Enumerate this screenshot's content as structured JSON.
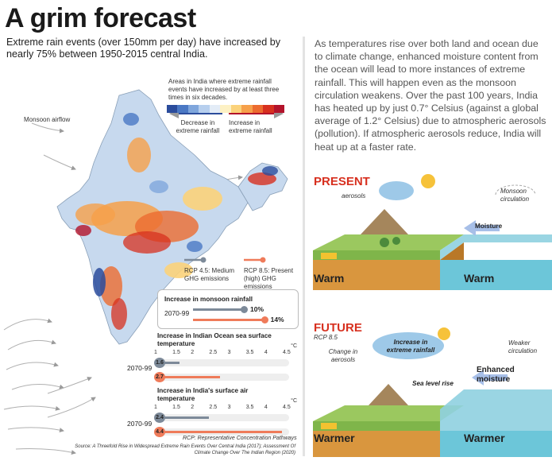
{
  "title": "A grim forecast",
  "subtitle": "Extreme rain events (over 150mm per day) have increased by nearly 75% between 1950-2015 central India.",
  "paragraph": "As temperatures rise over both land and ocean due to climate change, enhanced moisture content from the ocean will lead to more instances of extreme rainfall. This will happen even as the monsoon circulation weakens. Over the past 100 years, India has heated up by just 0.7° Celsius (against a global average of 1.2° Celsius) due to atmospheric aerosols (pollution). If atmospheric aerosols reduce, India will heat up at a faster rate.",
  "map": {
    "legend_title": "Areas in India where extreme rainfall events have increased by at least three times in six decades.",
    "decrease_label": "Decrease in extreme rainfall",
    "increase_label": "Increase in extreme rainfall",
    "monsoon_label": "Monsoon airflow",
    "colors": {
      "decrease": [
        "#2b4c9c",
        "#4a78c4",
        "#7fa6dc",
        "#b7cfee",
        "#e3ecf7"
      ],
      "increase": [
        "#fdf1c4",
        "#fbd27a",
        "#f6a04a",
        "#ec6b2f",
        "#d7301f",
        "#b3132b"
      ]
    }
  },
  "rcp": {
    "rcp45": "RCP 4.5: Medium GHG emissions",
    "rcp85": "RCP 8.5: Present (high) GHG emissions",
    "colors": {
      "rcp45": "#7d8a99",
      "rcp85": "#ef7b5a"
    }
  },
  "chart_data": [
    {
      "type": "bar",
      "title": "Increase in monsoon rainfall",
      "categories": [
        "2070-99"
      ],
      "unit": "%",
      "series": [
        {
          "name": "RCP 4.5",
          "values": [
            10
          ],
          "label": "10%"
        },
        {
          "name": "RCP 8.5",
          "values": [
            14
          ],
          "label": "14%"
        }
      ],
      "xlim": [
        0,
        15
      ]
    },
    {
      "type": "bar",
      "title": "Increase in Indian Ocean sea surface temperature",
      "categories": [
        "2070-99"
      ],
      "unit": "°C",
      "ticks": [
        "1",
        "1.5",
        "2",
        "2.5",
        "3",
        "3.5",
        "4",
        "4.5"
      ],
      "series": [
        {
          "name": "RCP 4.5",
          "values": [
            1.6
          ],
          "label": "1.6"
        },
        {
          "name": "RCP 8.5",
          "values": [
            2.7
          ],
          "label": "2.7"
        }
      ],
      "xlim": [
        1,
        4.5
      ]
    },
    {
      "type": "bar",
      "title": "Increase in India's surface air temperature",
      "categories": [
        "2070-99"
      ],
      "unit": "°C",
      "ticks": [
        "1",
        "1.5",
        "2",
        "2.5",
        "3",
        "3.5",
        "4",
        "4.5"
      ],
      "series": [
        {
          "name": "RCP 4.5",
          "values": [
            2.4
          ],
          "label": "2.4"
        },
        {
          "name": "RCP 8.5",
          "values": [
            4.4
          ],
          "label": "4.4"
        }
      ],
      "xlim": [
        1,
        4.5
      ]
    }
  ],
  "footnote": "RCP: Representative Concentration Pathways",
  "source": "Source: A Threefold Rise in Widespread Extreme Rain Events Over Central India (2017); Assessment Of Climate Change Over The Indian Region (2020)",
  "present": {
    "label": "PRESENT",
    "aerosols": "aerosols",
    "circulation": "Monsoon circulation",
    "moisture": "Moisture",
    "land": "Warm",
    "ocean": "Warm"
  },
  "future": {
    "label": "FUTURE",
    "scenario": "RCP 8.5",
    "aerosols": "Change in aerosols",
    "rain": "Increase in extreme rainfall",
    "circulation": "Weaker circulation",
    "moisture": "Enhanced moisture",
    "sea_level": "Sea level rise",
    "land": "Warmer",
    "ocean": "Warmer"
  }
}
